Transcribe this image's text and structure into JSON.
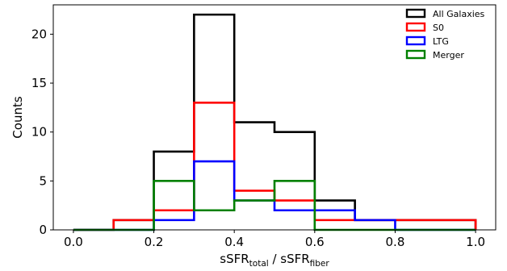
{
  "chart_data": {
    "type": "histogram",
    "xlabel_main": "sSFR",
    "xlabel_sub1": "total",
    "xlabel_sep": " / sSFR",
    "xlabel_sub2": "fiber",
    "ylabel": "Counts",
    "xlim": [
      -0.05,
      1.05
    ],
    "ylim": [
      0,
      23
    ],
    "xticks": [
      "0.0",
      "0.2",
      "0.4",
      "0.6",
      "0.8",
      "1.0"
    ],
    "yticks": [
      "0",
      "5",
      "10",
      "15",
      "20"
    ],
    "bin_edges": [
      0.0,
      0.1,
      0.2,
      0.3,
      0.4,
      0.5,
      0.6,
      0.7,
      0.8,
      0.9,
      1.0
    ],
    "legend_position": "top-right",
    "series": [
      {
        "name": "All Galaxies",
        "color": "#000000",
        "counts": [
          0,
          1,
          8,
          22,
          11,
          10,
          3,
          1,
          1,
          1
        ]
      },
      {
        "name": "S0",
        "color": "#ff0000",
        "counts": [
          0,
          1,
          2,
          13,
          4,
          3,
          1,
          1,
          1,
          1
        ]
      },
      {
        "name": "LTG",
        "color": "#0000ff",
        "counts": [
          0,
          0,
          1,
          7,
          3,
          2,
          2,
          1,
          0,
          0
        ]
      },
      {
        "name": "Merger",
        "color": "#008000",
        "counts": [
          0,
          0,
          5,
          2,
          3,
          5,
          0,
          0,
          0,
          0
        ]
      }
    ]
  }
}
